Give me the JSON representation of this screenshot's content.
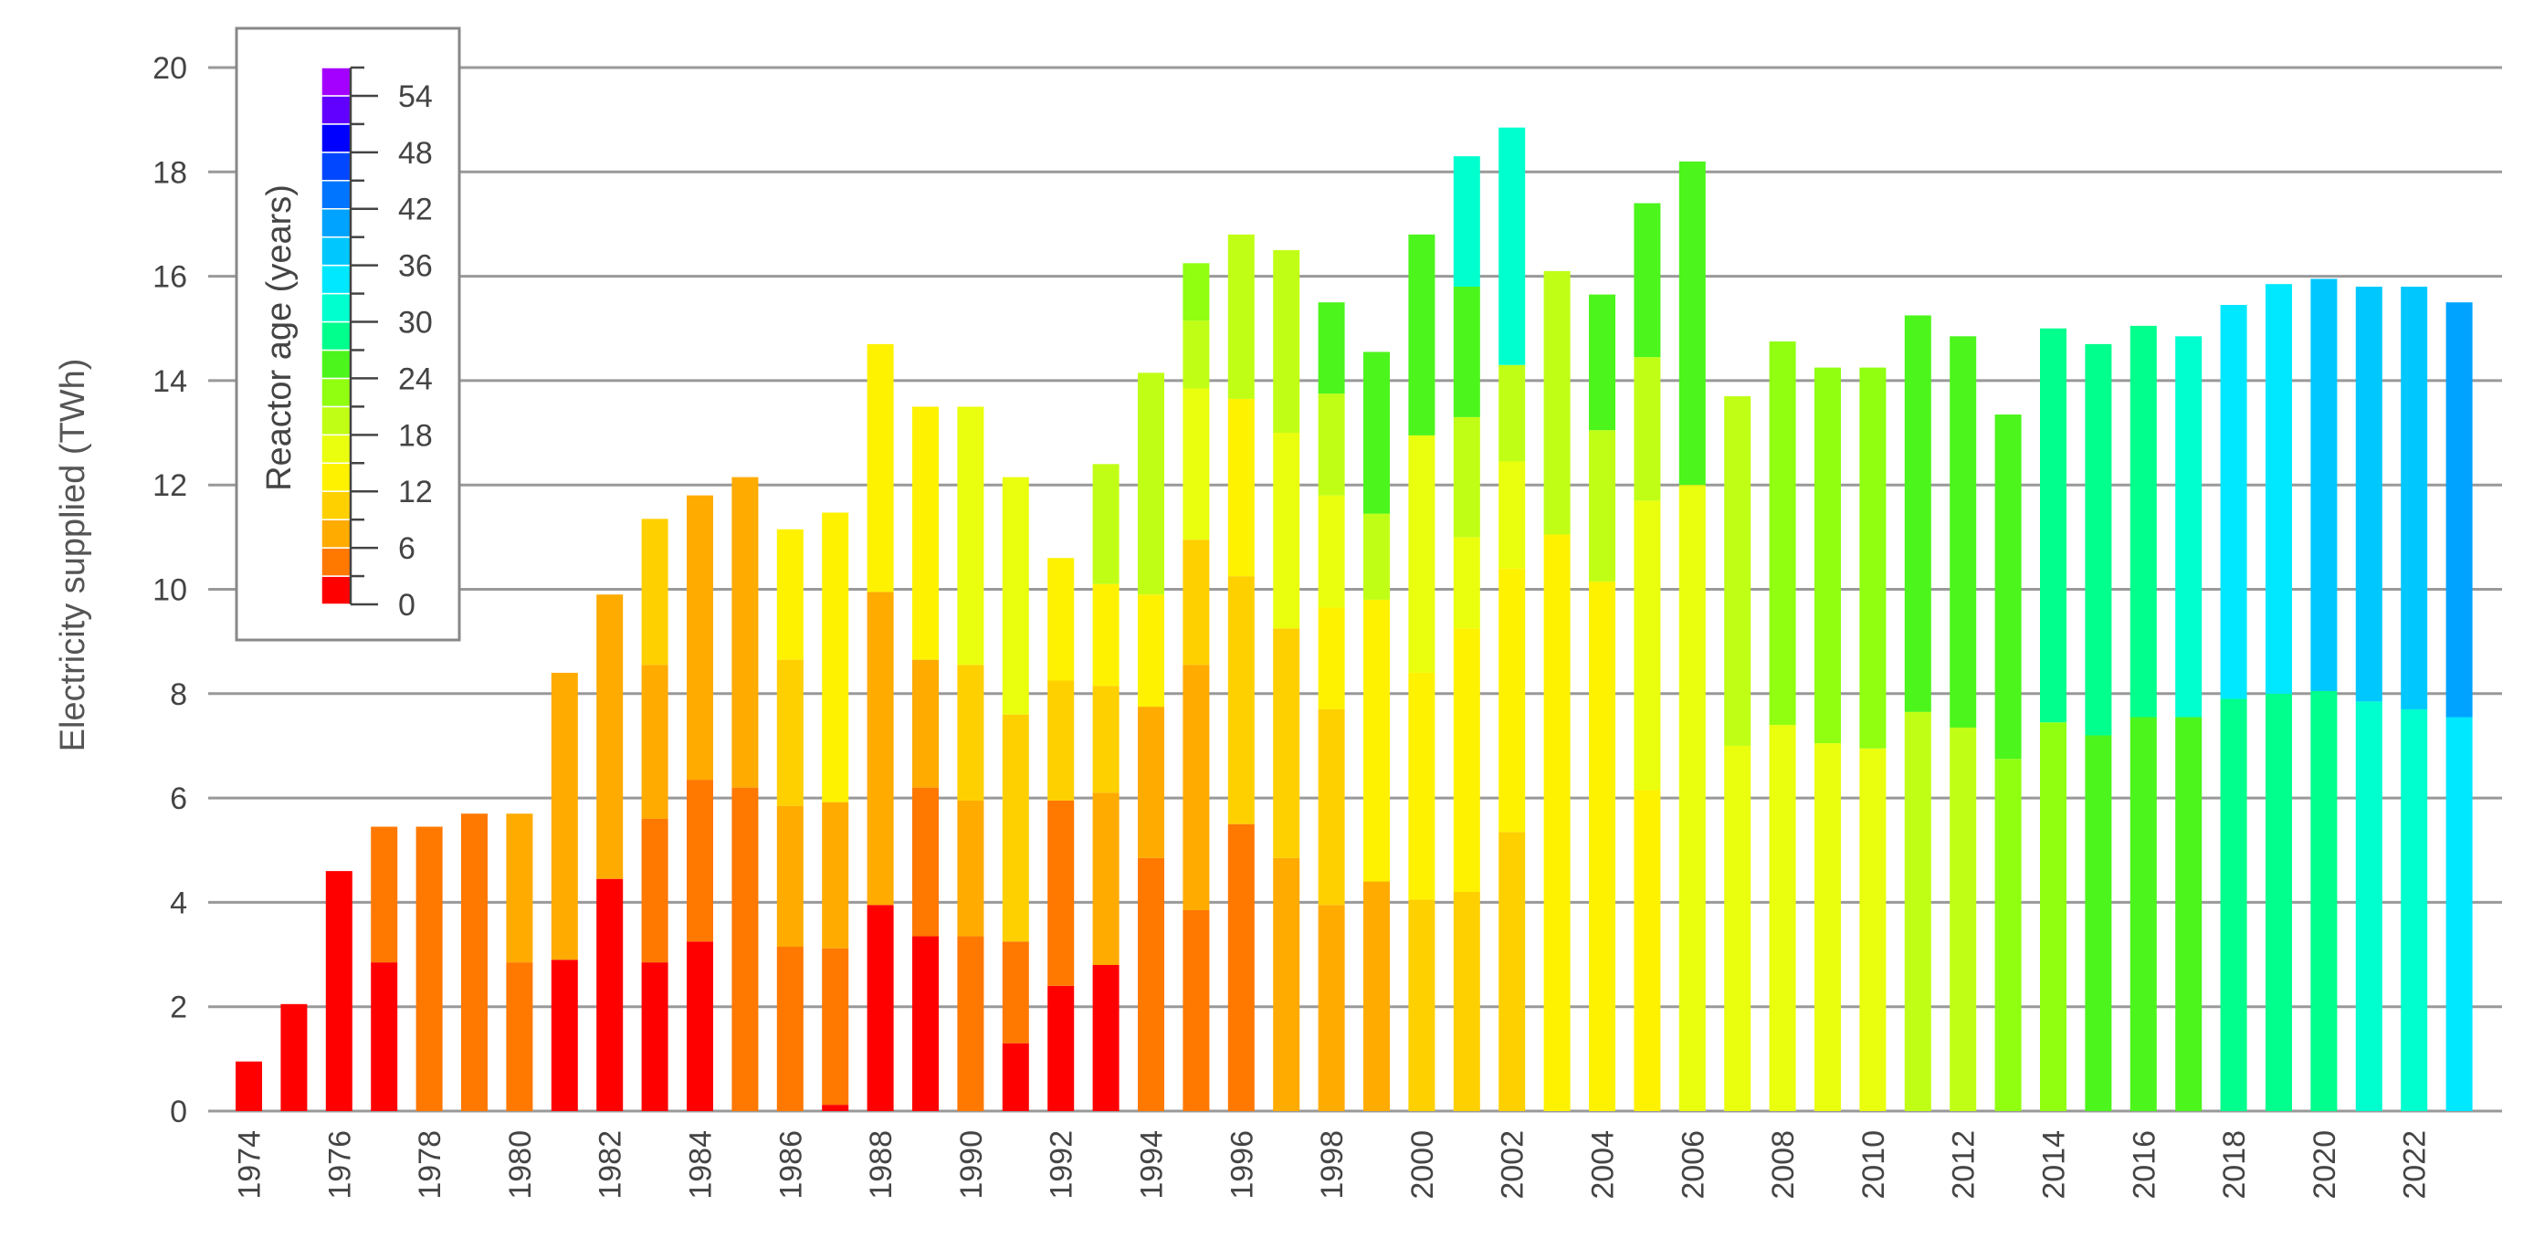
{
  "chart_data": {
    "type": "bar",
    "stacked": true,
    "title": "",
    "xlabel": "",
    "ylabel": "Electricity supplied (TWh)",
    "ylim": [
      0,
      20
    ],
    "yticks": [
      0,
      2,
      4,
      6,
      8,
      10,
      12,
      14,
      16,
      18,
      20
    ],
    "grid": true,
    "legend_position": "top-left",
    "legend": {
      "title": "Reactor age (years)",
      "ticks": [
        0,
        6,
        12,
        18,
        24,
        30,
        36,
        42,
        48,
        54
      ],
      "bin_years": 3,
      "colors": [
        "#ff0000",
        "#ff7800",
        "#ffab00",
        "#ffd000",
        "#fff200",
        "#eaff0e",
        "#c0ff15",
        "#90ff10",
        "#4cf51b",
        "#00ff8c",
        "#00ffce",
        "#00e8ff",
        "#00c8ff",
        "#00a3ff",
        "#0075ff",
        "#0047ff",
        "#0000ff",
        "#6200ff",
        "#a300ff"
      ]
    },
    "x_tick_labels": [
      "1974",
      "1976",
      "1978",
      "1980",
      "1982",
      "1984",
      "1986",
      "1988",
      "1990",
      "1992",
      "1994",
      "1996",
      "1998",
      "2000",
      "2002",
      "2004",
      "2006",
      "2008",
      "2010",
      "2012",
      "2014",
      "2016",
      "2018",
      "2020",
      "2022"
    ],
    "years": [
      1974,
      1975,
      1976,
      1977,
      1978,
      1979,
      1980,
      1981,
      1982,
      1983,
      1984,
      1985,
      1986,
      1987,
      1988,
      1989,
      1990,
      1991,
      1992,
      1993,
      1994,
      1995,
      1996,
      1997,
      1998,
      1999,
      2000,
      2001,
      2002,
      2003,
      2004,
      2005,
      2006,
      2007,
      2008,
      2009,
      2010,
      2011,
      2012,
      2013,
      2014,
      2015,
      2016,
      2017,
      2018,
      2019,
      2020,
      2021,
      2022,
      2023
    ],
    "bars": [
      [
        {
          "age_bin": 0,
          "value": 0.95
        }
      ],
      [
        {
          "age_bin": 0,
          "value": 2.05
        }
      ],
      [
        {
          "age_bin": 0,
          "value": 4.6
        }
      ],
      [
        {
          "age_bin": 0,
          "value": 2.85
        },
        {
          "age_bin": 1,
          "value": 2.6
        }
      ],
      [
        {
          "age_bin": 1,
          "value": 5.45
        }
      ],
      [
        {
          "age_bin": 1,
          "value": 5.7
        }
      ],
      [
        {
          "age_bin": 1,
          "value": 2.85
        },
        {
          "age_bin": 2,
          "value": 2.85
        }
      ],
      [
        {
          "age_bin": 0,
          "value": 2.9
        },
        {
          "age_bin": 2,
          "value": 5.5
        }
      ],
      [
        {
          "age_bin": 0,
          "value": 4.45
        },
        {
          "age_bin": 2,
          "value": 5.45
        }
      ],
      [
        {
          "age_bin": 0,
          "value": 2.85
        },
        {
          "age_bin": 1,
          "value": 2.75
        },
        {
          "age_bin": 2,
          "value": 2.95
        },
        {
          "age_bin": 3,
          "value": 2.8
        }
      ],
      [
        {
          "age_bin": 0,
          "value": 3.25
        },
        {
          "age_bin": 1,
          "value": 3.1
        },
        {
          "age_bin": 2,
          "value": 5.45
        }
      ],
      [
        {
          "age_bin": 1,
          "value": 6.2
        },
        {
          "age_bin": 2,
          "value": 5.95
        }
      ],
      [
        {
          "age_bin": 1,
          "value": 3.15
        },
        {
          "age_bin": 2,
          "value": 2.7
        },
        {
          "age_bin": 3,
          "value": 2.8
        },
        {
          "age_bin": 4,
          "value": 2.5
        }
      ],
      [
        {
          "age_bin": 0,
          "value": 0.12
        },
        {
          "age_bin": 1,
          "value": 3.0
        },
        {
          "age_bin": 2,
          "value": 2.8
        },
        {
          "age_bin": 4,
          "value": 5.55
        }
      ],
      [
        {
          "age_bin": 0,
          "value": 3.95
        },
        {
          "age_bin": 2,
          "value": 6.0
        },
        {
          "age_bin": 4,
          "value": 4.75
        }
      ],
      [
        {
          "age_bin": 0,
          "value": 3.35
        },
        {
          "age_bin": 1,
          "value": 2.85
        },
        {
          "age_bin": 2,
          "value": 2.45
        },
        {
          "age_bin": 4,
          "value": 4.85
        }
      ],
      [
        {
          "age_bin": 1,
          "value": 3.35
        },
        {
          "age_bin": 2,
          "value": 2.6
        },
        {
          "age_bin": 3,
          "value": 2.6
        },
        {
          "age_bin": 5,
          "value": 4.95
        }
      ],
      [
        {
          "age_bin": 0,
          "value": 1.3
        },
        {
          "age_bin": 1,
          "value": 1.95
        },
        {
          "age_bin": 3,
          "value": 4.35
        },
        {
          "age_bin": 5,
          "value": 4.55
        }
      ],
      [
        {
          "age_bin": 0,
          "value": 2.4
        },
        {
          "age_bin": 1,
          "value": 3.55
        },
        {
          "age_bin": 3,
          "value": 2.3
        },
        {
          "age_bin": 4,
          "value": 2.35
        }
      ],
      [
        {
          "age_bin": 0,
          "value": 2.8
        },
        {
          "age_bin": 2,
          "value": 3.3
        },
        {
          "age_bin": 3,
          "value": 2.05
        },
        {
          "age_bin": 4,
          "value": 1.95
        },
        {
          "age_bin": 6,
          "value": 2.3
        }
      ],
      [
        {
          "age_bin": 1,
          "value": 4.85
        },
        {
          "age_bin": 2,
          "value": 2.9
        },
        {
          "age_bin": 4,
          "value": 2.15
        },
        {
          "age_bin": 6,
          "value": 4.25
        }
      ],
      [
        {
          "age_bin": 1,
          "value": 3.85
        },
        {
          "age_bin": 2,
          "value": 4.7
        },
        {
          "age_bin": 3,
          "value": 2.4
        },
        {
          "age_bin": 5,
          "value": 2.9
        },
        {
          "age_bin": 6,
          "value": 1.3
        },
        {
          "age_bin": 7,
          "value": 1.1
        }
      ],
      [
        {
          "age_bin": 1,
          "value": 5.5
        },
        {
          "age_bin": 3,
          "value": 4.75
        },
        {
          "age_bin": 4,
          "value": 3.4
        },
        {
          "age_bin": 6,
          "value": 3.15
        }
      ],
      [
        {
          "age_bin": 2,
          "value": 4.85
        },
        {
          "age_bin": 3,
          "value": 4.4
        },
        {
          "age_bin": 5,
          "value": 3.75
        },
        {
          "age_bin": 6,
          "value": 3.5
        }
      ],
      [
        {
          "age_bin": 2,
          "value": 3.95
        },
        {
          "age_bin": 3,
          "value": 3.75
        },
        {
          "age_bin": 4,
          "value": 1.95
        },
        {
          "age_bin": 5,
          "value": 2.15
        },
        {
          "age_bin": 6,
          "value": 1.95
        },
        {
          "age_bin": 8,
          "value": 1.75
        }
      ],
      [
        {
          "age_bin": 2,
          "value": 4.4
        },
        {
          "age_bin": 4,
          "value": 5.4
        },
        {
          "age_bin": 6,
          "value": 1.65
        },
        {
          "age_bin": 8,
          "value": 3.1
        }
      ],
      [
        {
          "age_bin": 3,
          "value": 4.05
        },
        {
          "age_bin": 4,
          "value": 4.35
        },
        {
          "age_bin": 5,
          "value": 4.55
        },
        {
          "age_bin": 8,
          "value": 3.85
        }
      ],
      [
        {
          "age_bin": 3,
          "value": 4.2
        },
        {
          "age_bin": 4,
          "value": 5.05
        },
        {
          "age_bin": 5,
          "value": 1.75
        },
        {
          "age_bin": 6,
          "value": 2.3
        },
        {
          "age_bin": 8,
          "value": 2.5
        },
        {
          "age_bin": 10,
          "value": 2.5
        }
      ],
      [
        {
          "age_bin": 3,
          "value": 5.35
        },
        {
          "age_bin": 4,
          "value": 5.05
        },
        {
          "age_bin": 5,
          "value": 2.05
        },
        {
          "age_bin": 6,
          "value": 1.85
        },
        {
          "age_bin": 10,
          "value": 4.55
        }
      ],
      [
        {
          "age_bin": 4,
          "value": 11.05
        },
        {
          "age_bin": 6,
          "value": 5.05
        }
      ],
      [
        {
          "age_bin": 4,
          "value": 10.15
        },
        {
          "age_bin": 6,
          "value": 2.9
        },
        {
          "age_bin": 8,
          "value": 2.6
        }
      ],
      [
        {
          "age_bin": 4,
          "value": 6.15
        },
        {
          "age_bin": 5,
          "value": 5.55
        },
        {
          "age_bin": 6,
          "value": 2.75
        },
        {
          "age_bin": 8,
          "value": 2.95
        }
      ],
      [
        {
          "age_bin": 5,
          "value": 12.0
        },
        {
          "age_bin": 8,
          "value": 6.2
        }
      ],
      [
        {
          "age_bin": 5,
          "value": 7.0
        },
        {
          "age_bin": 6,
          "value": 6.7
        }
      ],
      [
        {
          "age_bin": 5,
          "value": 7.4
        },
        {
          "age_bin": 7,
          "value": 7.35
        }
      ],
      [
        {
          "age_bin": 5,
          "value": 7.05
        },
        {
          "age_bin": 7,
          "value": 7.2
        }
      ],
      [
        {
          "age_bin": 5,
          "value": 6.95
        },
        {
          "age_bin": 7,
          "value": 7.3
        }
      ],
      [
        {
          "age_bin": 6,
          "value": 7.65
        },
        {
          "age_bin": 8,
          "value": 7.6
        }
      ],
      [
        {
          "age_bin": 6,
          "value": 7.35
        },
        {
          "age_bin": 8,
          "value": 7.5
        }
      ],
      [
        {
          "age_bin": 7,
          "value": 6.75
        },
        {
          "age_bin": 8,
          "value": 6.6
        }
      ],
      [
        {
          "age_bin": 7,
          "value": 7.45
        },
        {
          "age_bin": 9,
          "value": 7.55
        }
      ],
      [
        {
          "age_bin": 8,
          "value": 7.2
        },
        {
          "age_bin": 9,
          "value": 7.5
        }
      ],
      [
        {
          "age_bin": 8,
          "value": 7.55
        },
        {
          "age_bin": 9,
          "value": 7.5
        }
      ],
      [
        {
          "age_bin": 8,
          "value": 7.55
        },
        {
          "age_bin": 10,
          "value": 7.3
        }
      ],
      [
        {
          "age_bin": 9,
          "value": 7.9
        },
        {
          "age_bin": 11,
          "value": 7.55
        }
      ],
      [
        {
          "age_bin": 9,
          "value": 8.0
        },
        {
          "age_bin": 11,
          "value": 7.85
        }
      ],
      [
        {
          "age_bin": 9,
          "value": 8.05
        },
        {
          "age_bin": 12,
          "value": 7.9
        }
      ],
      [
        {
          "age_bin": 10,
          "value": 7.85
        },
        {
          "age_bin": 12,
          "value": 7.95
        }
      ],
      [
        {
          "age_bin": 10,
          "value": 7.7
        },
        {
          "age_bin": 12,
          "value": 8.1
        }
      ],
      [
        {
          "age_bin": 11,
          "value": 7.55
        },
        {
          "age_bin": 13,
          "value": 7.95
        }
      ]
    ]
  }
}
